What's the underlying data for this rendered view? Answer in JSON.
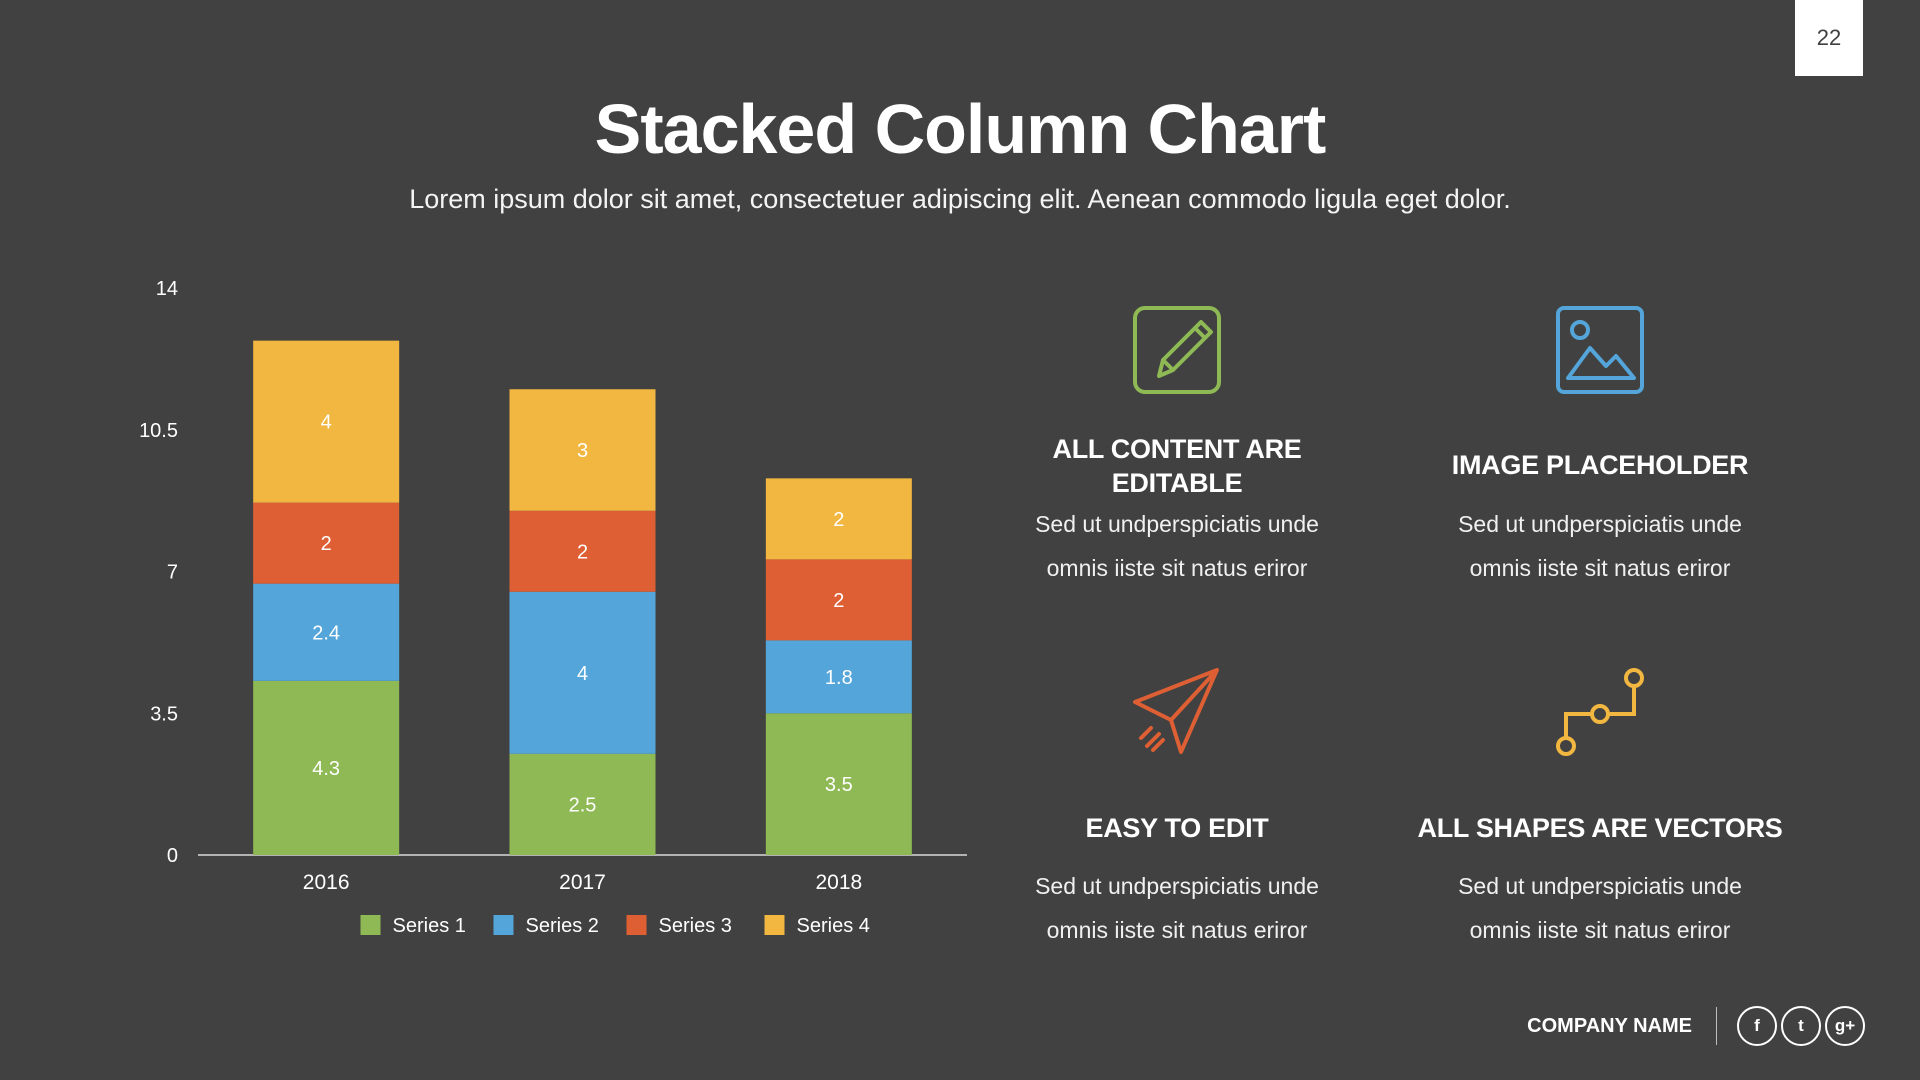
{
  "page_number": "22",
  "title": "Stacked Column Chart",
  "subtitle": "Lorem ipsum dolor sit amet, consectetuer adipiscing elit. Aenean commodo ligula eget dolor.",
  "chart_data": {
    "type": "bar",
    "stacked": true,
    "title": "",
    "xlabel": "",
    "ylabel": "",
    "categories": [
      "2016",
      "2017",
      "2018"
    ],
    "ylim": [
      0,
      14
    ],
    "yticks": [
      0,
      3.5,
      7,
      10.5,
      14
    ],
    "ytick_labels": [
      "0",
      "3.5",
      "7",
      "10.5",
      "14"
    ],
    "grid": false,
    "legend": "bottom",
    "series": [
      {
        "name": "Series 1",
        "values": [
          4.3,
          2.5,
          3.5
        ],
        "labels": [
          "4.3",
          "2.5",
          "3.5"
        ],
        "color": "#8fb954"
      },
      {
        "name": "Series 2",
        "values": [
          2.4,
          4,
          1.8
        ],
        "labels": [
          "2.4",
          "4",
          "1.8"
        ],
        "color": "#53a5da"
      },
      {
        "name": "Series 3",
        "values": [
          2,
          2,
          2
        ],
        "labels": [
          "2",
          "2",
          "2"
        ],
        "color": "#de5f34"
      },
      {
        "name": "Series 4",
        "values": [
          4,
          3,
          2
        ],
        "labels": [
          "4",
          "3",
          "2"
        ],
        "color": "#f2b741"
      }
    ]
  },
  "features": [
    {
      "icon": "edit-icon",
      "title_line1": "ALL CONTENT ARE",
      "title_line2": "EDITABLE",
      "desc_line1": "Sed ut undperspiciatis unde",
      "desc_line2": "omnis iiste sit natus eriror",
      "color": "#8fb954"
    },
    {
      "icon": "image-icon",
      "title_line1": "IMAGE PLACEHOLDER",
      "title_line2": "",
      "desc_line1": "Sed ut undperspiciatis unde",
      "desc_line2": "omnis iiste sit natus eriror",
      "color": "#53a5da"
    },
    {
      "icon": "paper-plane-icon",
      "title_line1": "EASY TO EDIT",
      "title_line2": "",
      "desc_line1": "Sed ut undperspiciatis unde",
      "desc_line2": "omnis iiste sit natus eriror",
      "color": "#de5f34"
    },
    {
      "icon": "vector-path-icon",
      "title_line1": "ALL SHAPES ARE VECTORS",
      "title_line2": "",
      "desc_line1": "Sed ut undperspiciatis unde",
      "desc_line2": "omnis iiste sit natus eriror",
      "color": "#f2b741"
    }
  ],
  "footer": {
    "company": "COMPANY NAME",
    "social": [
      {
        "icon": "facebook-icon",
        "glyph": "f"
      },
      {
        "icon": "twitter-icon",
        "glyph": "t"
      },
      {
        "icon": "google-plus-icon",
        "glyph": "g+"
      }
    ]
  }
}
